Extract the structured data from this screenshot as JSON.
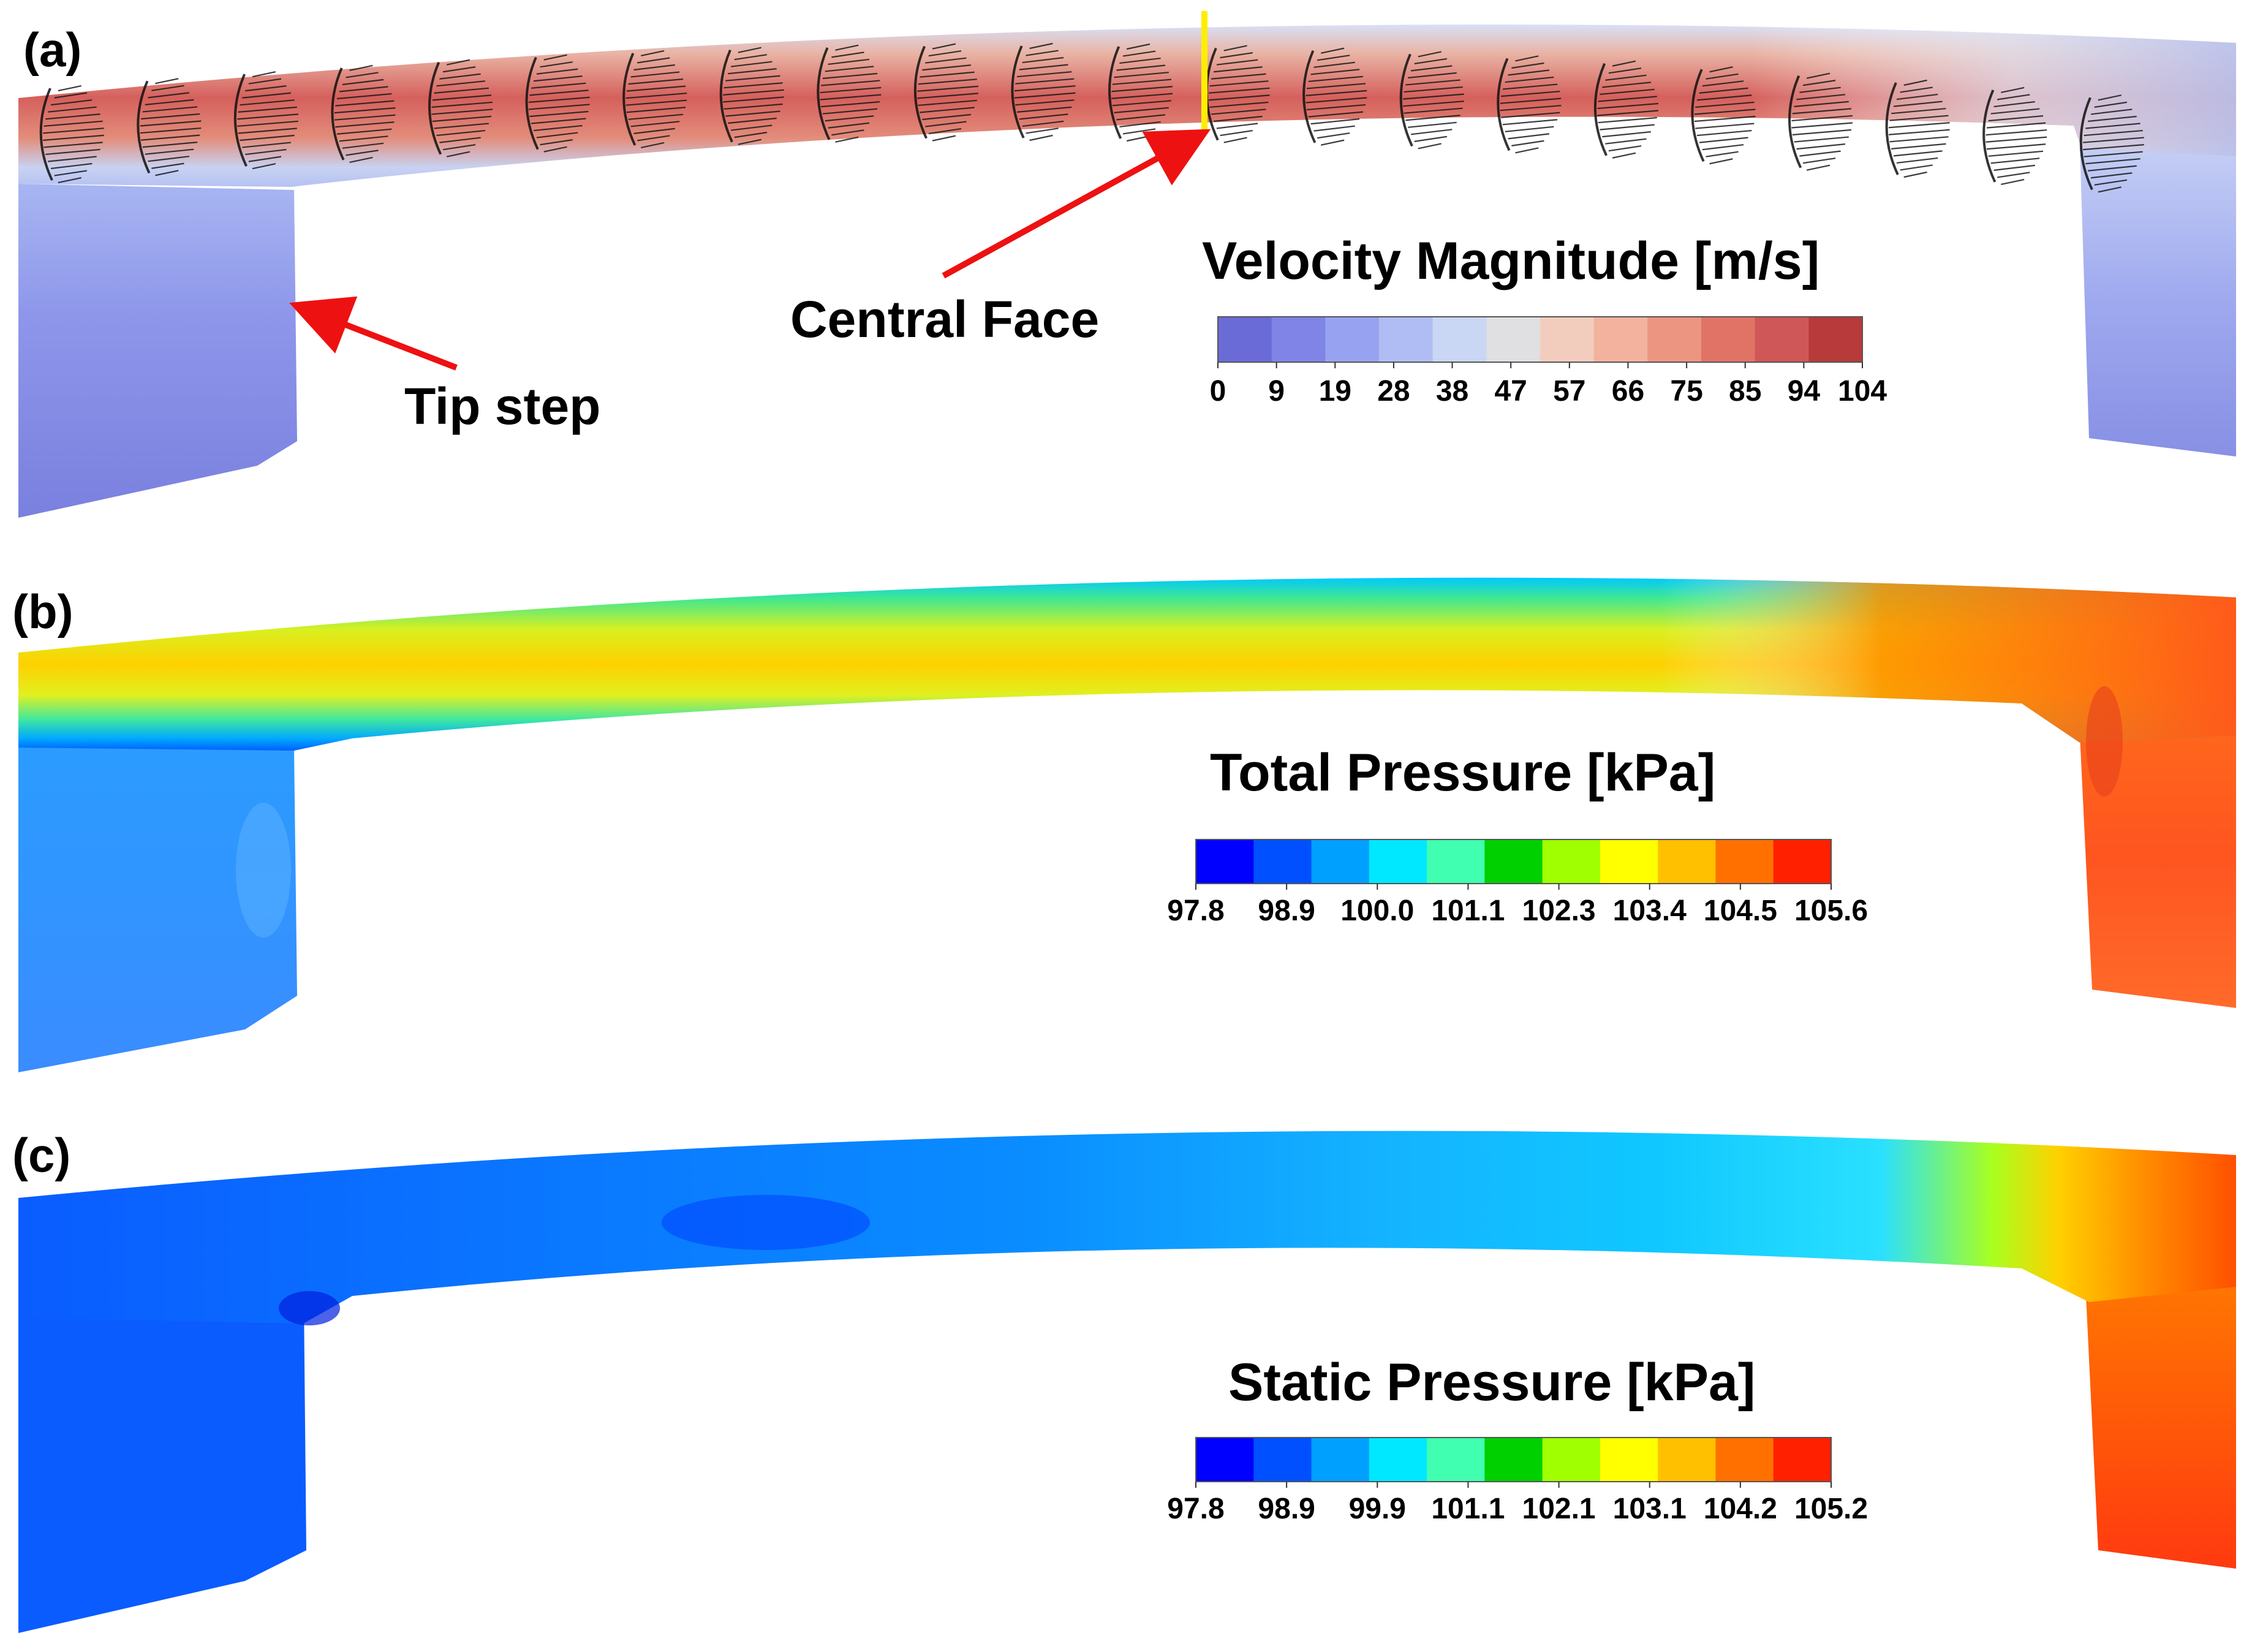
{
  "panels": [
    {
      "label": "(a)",
      "legend": {
        "title": "Velocity Magnitude [m/s]",
        "ticks": [
          "0",
          "9",
          "19",
          "28",
          "38",
          "47",
          "57",
          "66",
          "75",
          "85",
          "94",
          "104"
        ],
        "colors": [
          "#6b6bd8",
          "#7f84e6",
          "#97a3f0",
          "#b0bdf4",
          "#c9d6f4",
          "#e0e0e2",
          "#f2cdbd",
          "#f2b29e",
          "#ec9580",
          "#e07366",
          "#cf5757",
          "#b83a3a"
        ]
      },
      "annotations": {
        "central_face": "Central Face",
        "tip_step": "Tip step"
      }
    },
    {
      "label": "(b)",
      "legend": {
        "title": "Total Pressure [kPa]",
        "ticks": [
          "97.8",
          "98.9",
          "100.0",
          "101.1",
          "102.3",
          "103.4",
          "104.5",
          "105.6"
        ],
        "colors": [
          "#0000ff",
          "#0050ff",
          "#00a0ff",
          "#00e8ff",
          "#40ffb0",
          "#00d000",
          "#a0ff00",
          "#ffff00",
          "#ffc000",
          "#ff7000",
          "#ff2000"
        ]
      }
    },
    {
      "label": "(c)",
      "legend": {
        "title": "Static Pressure [kPa]",
        "ticks": [
          "97.8",
          "98.9",
          "99.9",
          "101.1",
          "102.1",
          "103.1",
          "104.2",
          "105.2"
        ],
        "colors": [
          "#0000ff",
          "#0050ff",
          "#00a0ff",
          "#00e8ff",
          "#40ffb0",
          "#00d000",
          "#a0ff00",
          "#ffff00",
          "#ffc000",
          "#ff7000",
          "#ff2000"
        ]
      }
    }
  ],
  "colors": {
    "annotation_arrow": "#ee1111",
    "central_face_line": "#ffee00"
  }
}
